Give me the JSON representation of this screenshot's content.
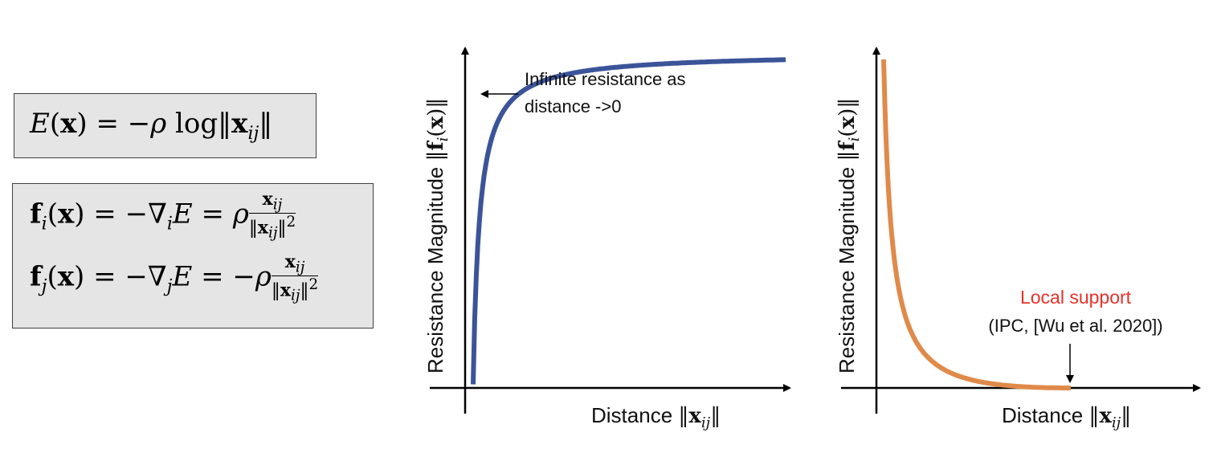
{
  "equations": {
    "energy": "E(x) = −ρ log‖x_ij‖",
    "force_i": "f_i(x) = −∇_i E = ρ x_ij / ‖x_ij‖²",
    "force_j": "f_j(x) = −∇_j E = −ρ x_ij / ‖x_ij‖²"
  },
  "chart_data": [
    {
      "type": "line",
      "title": "",
      "xlabel": "Distance ‖x_ij‖",
      "ylabel": "Resistance Magnitude ‖f_i(x)‖",
      "series": [
        {
          "function": "1/x",
          "color": "#3b5499"
        }
      ],
      "annotation": "Infinite resistance as distance ->0"
    },
    {
      "type": "line",
      "title": "",
      "xlabel": "Distance ‖x_ij‖",
      "ylabel": "Resistance Magnitude ‖f_i(x)‖",
      "series": [
        {
          "function": "barrier with local support",
          "color": "#e08a4a"
        }
      ],
      "annotation_title": "Local support",
      "annotation_title_color": "#e8312a",
      "annotation_sub": "(IPC, [Wu et al. 2020])"
    }
  ],
  "labels": {
    "left_annotation_line1": "Infinite resistance as",
    "left_annotation_line2": "distance ->0",
    "axis_x_text": "Distance ",
    "axis_y_text": "Resistance Magnitude ",
    "right_annotation_title": "Local support",
    "right_annotation_sub": "(IPC, [Wu et al. 2020])"
  }
}
